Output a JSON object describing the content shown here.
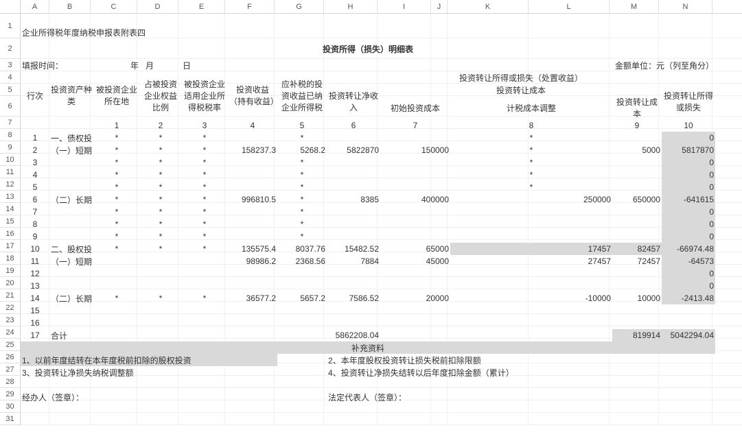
{
  "widths": {
    "rowhdr": 30,
    "A": 42,
    "B": 60,
    "C": 68,
    "D": 60,
    "E": 68,
    "F": 72,
    "G": 72,
    "H": 78,
    "I": 78,
    "J": 24,
    "K": 118,
    "L": 118,
    "M": 72,
    "N": 78
  },
  "heights": {
    "r1": 36,
    "r2": 30,
    "r3": 18,
    "r4": 18,
    "r5": 18,
    "r6": 30,
    "r7": 18,
    "def": 18
  },
  "col_labels": [
    "A",
    "B",
    "C",
    "D",
    "E",
    "F",
    "G",
    "H",
    "I",
    "J",
    "K",
    "L",
    "M",
    "N"
  ],
  "row_count": 31,
  "texts": {
    "subtitle": "企业所得税年度纳税申报表附表四",
    "title": "投资所得（损失）明细表",
    "fill_time": "填报时间：",
    "year": "年",
    "month": "月",
    "day": "日",
    "unit": "金额单位：元（列至角分）",
    "h_row": "行次",
    "h_asset": "投资资产种类",
    "h_loc": "被投资企业所在地",
    "h_ratio": "占被投资企业权益比例",
    "h_rate": "被投资企业适用企业所得税税率",
    "h_income": "投资收益（持有收益）",
    "h_paid": "应补税的投资收益已纳企业所得税",
    "h_transfer_header": "投资转让所得或损失（处置收益）",
    "h_net": "投资转让净收入",
    "h_cost_header": "投资转让成本",
    "h_init": "初始投资成本",
    "h_adj": "计税成本调整",
    "h_cost": "投资转让成本",
    "h_gain": "投资转让所得或损失",
    "num1": "1",
    "num2": "2",
    "num3": "3",
    "num4": "4",
    "num5": "5",
    "num6": "6",
    "num7": "7",
    "num8": "8",
    "num9": "9",
    "num10": "10",
    "cat_bond": "一、债权投",
    "cat_short1": "（一）短期",
    "cat_long1": "（二）长期",
    "cat_equity": "二、股权投",
    "cat_short2": "（一）短期",
    "cat_long2": "（二）长期",
    "total": "合计",
    "supp": "补充资料",
    "supp1": "1、以前年度结转在本年度税前扣除的股权投资",
    "supp2": "2、本年度股权投资转让损失税前扣除限额",
    "supp3": "3、投资转让净损失纳税调整额",
    "supp4": "4、投资转让净损失结转以后年度扣除金额（累计）",
    "preparer": "经办人（签章）：",
    "legal": "法定代表人（签章）：",
    "star": "*",
    "r2_F": "158237.3",
    "r2_G": "5268.2",
    "r2_H": "5822870",
    "r2_I": "150000",
    "r2_M": "5000",
    "r2_N": "5817870",
    "r6_F": "996810.5",
    "r6_H": "8385",
    "r6_I": "400000",
    "r6_K": "250000",
    "r6_M": "650000",
    "r6_N": "-641615",
    "r10_F": "135575.4",
    "r10_G": "8037.76",
    "r10_H": "15482.52",
    "r10_I": "65000",
    "r10_K": "17457",
    "r10_M": "82457",
    "r10_N": "-66974.48",
    "r11_F": "98986.2",
    "r11_G": "2368.56",
    "r11_H": "7884",
    "r11_I": "45000",
    "r11_K": "27457",
    "r11_M": "72457",
    "r11_N": "-64573",
    "r14_F": "36577.2",
    "r14_G": "5657.2",
    "r14_H": "7586.52",
    "r14_I": "20000",
    "r14_K": "-10000",
    "r14_M": "10000",
    "r14_N": "-2413.48",
    "r17_H": "5862208.04",
    "r17_M": "819914",
    "r17_N": "5042294.04",
    "zero": "0",
    "rn1": "1",
    "rn2": "2",
    "rn3": "3",
    "rn4": "4",
    "rn5": "5",
    "rn6": "6",
    "rn7": "7",
    "rn8": "8",
    "rn9": "9",
    "rn10": "10",
    "rn11": "11",
    "rn12": "12",
    "rn13": "13",
    "rn14": "14",
    "rn15": "15",
    "rn16": "16",
    "rn17": "17"
  }
}
